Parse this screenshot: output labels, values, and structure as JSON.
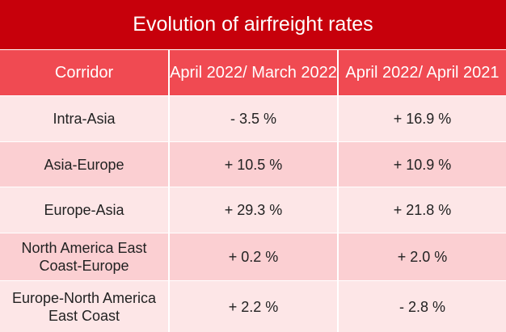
{
  "table": {
    "title": "Evolution of airfreight rates",
    "headers": [
      "Corridor",
      "April 2022/ March 2022",
      "April 2022/ April 2021"
    ],
    "rows": [
      [
        "Intra-Asia",
        "- 3.5 %",
        "+ 16.9 %"
      ],
      [
        "Asia-Europe",
        "+ 10.5 %",
        "+ 10.9 %"
      ],
      [
        "Europe-Asia",
        "+ 29.3 %",
        "+ 21.8 %"
      ],
      [
        "North America East Coast-Europe",
        "+ 0.2 %",
        "+ 2.0 %"
      ],
      [
        "Europe-North America East Coast",
        "+ 2.2 %",
        "- 2.8 %"
      ]
    ]
  },
  "colors": {
    "title_bg": "#c7000b",
    "header_bg": "#f04a52",
    "row_light": "#fde6e7",
    "row_dark": "#fbcfd2"
  }
}
